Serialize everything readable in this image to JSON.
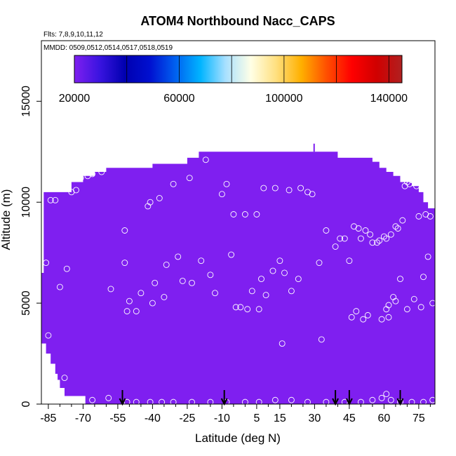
{
  "chart_data": {
    "type": "heatmap",
    "title": "ATOM4 Northbound Nacc_CAPS",
    "subtitle_flights": "Flts: 7,8,9,10,11,12",
    "subtitle_dates": "MMDD: 0509,0512,0514,0517,0518,0519",
    "xlabel": "Latitude (deg N)",
    "ylabel": "Altitude (m)",
    "xlim": [
      -88,
      82
    ],
    "ylim": [
      0,
      18000
    ],
    "x_ticks": [
      -85,
      -70,
      -55,
      -40,
      -25,
      -10,
      5,
      15,
      30,
      45,
      60,
      75
    ],
    "y_ticks": [
      0,
      5000,
      10000,
      15000
    ],
    "minor_x_ticks": [
      -80,
      -75,
      -65,
      -60,
      -50,
      -45,
      -35,
      -30,
      -20,
      -15,
      -5,
      0,
      10,
      20,
      25,
      35,
      40,
      50,
      55,
      65,
      70,
      80
    ],
    "fill_color": "#7f1ff0",
    "colorbar": {
      "min": 20000,
      "max": 145000,
      "tick_labels": [
        "20000",
        "60000",
        "100000",
        "140000"
      ],
      "tick_values": [
        20000,
        60000,
        100000,
        140000
      ],
      "grid_values": [
        20000,
        40000,
        60000,
        80000,
        100000,
        120000,
        140000
      ],
      "colors": [
        "#7f1ff0",
        "#3a14e0",
        "#0000b0",
        "#0010d0",
        "#0060f0",
        "#00b4ff",
        "#a8e0ff",
        "#ffffe6",
        "#ffe080",
        "#ffb000",
        "#ff5000",
        "#ff0000",
        "#d00000",
        "#b02020"
      ]
    },
    "curtain_profile": [
      [
        -88,
        6500
      ],
      [
        -87,
        10500
      ],
      [
        -80,
        10500
      ],
      [
        -75,
        11000
      ],
      [
        -70,
        11300
      ],
      [
        -65,
        11500
      ],
      [
        -60,
        11700
      ],
      [
        -40,
        11900
      ],
      [
        -25,
        12200
      ],
      [
        -20,
        12500
      ],
      [
        30,
        12500
      ],
      [
        40,
        12200
      ],
      [
        55,
        12000
      ],
      [
        58,
        11700
      ],
      [
        61,
        11500
      ],
      [
        64,
        11300
      ],
      [
        67,
        11000
      ],
      [
        72,
        10800
      ],
      [
        75,
        10500
      ],
      [
        77,
        10000
      ],
      [
        79,
        9700
      ],
      [
        80,
        9700
      ]
    ],
    "curtain_bottom_profile": [
      [
        -88,
        3500
      ],
      [
        -86,
        3000
      ],
      [
        -84,
        2500
      ],
      [
        -82,
        2000
      ],
      [
        -81,
        1500
      ],
      [
        -80,
        1200
      ],
      [
        -78,
        800
      ],
      [
        -72,
        400
      ],
      [
        -69,
        400
      ],
      [
        -69,
        0
      ]
    ],
    "vertical_profile_markers": [
      -53,
      -9,
      39,
      45,
      67
    ],
    "sample_points": [
      [
        -86,
        7000
      ],
      [
        -85,
        3400
      ],
      [
        -84,
        10100
      ],
      [
        -82,
        10100
      ],
      [
        -80,
        5800
      ],
      [
        -78,
        1300
      ],
      [
        -77,
        6700
      ],
      [
        -75,
        10500
      ],
      [
        -73,
        10600
      ],
      [
        -71,
        11200
      ],
      [
        -68,
        11300
      ],
      [
        -66,
        11400
      ],
      [
        -62,
        11500
      ],
      [
        -58,
        5700
      ],
      [
        -52,
        8600
      ],
      [
        -52,
        7000
      ],
      [
        -51,
        4600
      ],
      [
        -50,
        5100
      ],
      [
        -47,
        4600
      ],
      [
        -45,
        5500
      ],
      [
        -42,
        9800
      ],
      [
        -41,
        10000
      ],
      [
        -40,
        5000
      ],
      [
        -39,
        6000
      ],
      [
        -37,
        10200
      ],
      [
        -35,
        5300
      ],
      [
        -34,
        6900
      ],
      [
        -31,
        10900
      ],
      [
        -29,
        7300
      ],
      [
        -27,
        6100
      ],
      [
        -24,
        11200
      ],
      [
        -23,
        6000
      ],
      [
        -19,
        7100
      ],
      [
        -17,
        12100
      ],
      [
        -15,
        6400
      ],
      [
        -13,
        5500
      ],
      [
        -10,
        10400
      ],
      [
        -8,
        10900
      ],
      [
        -6,
        7400
      ],
      [
        -5,
        9400
      ],
      [
        -4,
        4800
      ],
      [
        -2,
        4800
      ],
      [
        0,
        9400
      ],
      [
        1,
        4700
      ],
      [
        3,
        5600
      ],
      [
        5,
        9400
      ],
      [
        6,
        4700
      ],
      [
        7,
        6200
      ],
      [
        8,
        10700
      ],
      [
        9,
        5400
      ],
      [
        12,
        6600
      ],
      [
        13,
        10700
      ],
      [
        15,
        7100
      ],
      [
        17,
        6500
      ],
      [
        19,
        10600
      ],
      [
        20,
        5600
      ],
      [
        16,
        3000
      ],
      [
        23,
        6200
      ],
      [
        24,
        10700
      ],
      [
        27,
        10500
      ],
      [
        29,
        10400
      ],
      [
        32,
        7000
      ],
      [
        33,
        3200
      ],
      [
        35,
        8600
      ],
      [
        39,
        7800
      ],
      [
        41,
        8200
      ],
      [
        43,
        8200
      ],
      [
        45,
        7100
      ],
      [
        46,
        4300
      ],
      [
        47,
        8800
      ],
      [
        48,
        4600
      ],
      [
        49,
        8700
      ],
      [
        50,
        8200
      ],
      [
        51,
        4200
      ],
      [
        52,
        8600
      ],
      [
        53,
        4400
      ],
      [
        54,
        8400
      ],
      [
        55,
        8000
      ],
      [
        57,
        8000
      ],
      [
        58,
        8100
      ],
      [
        59,
        4200
      ],
      [
        60,
        8300
      ],
      [
        61,
        8200
      ],
      [
        61,
        4700
      ],
      [
        62,
        4900
      ],
      [
        62,
        4300
      ],
      [
        63,
        8400
      ],
      [
        64,
        5300
      ],
      [
        65,
        8800
      ],
      [
        65,
        5100
      ],
      [
        66,
        8700
      ],
      [
        67,
        6200
      ],
      [
        68,
        9100
      ],
      [
        69,
        10800
      ],
      [
        70,
        11000
      ],
      [
        70,
        4700
      ],
      [
        71,
        10900
      ],
      [
        72,
        11100
      ],
      [
        73,
        5200
      ],
      [
        74,
        10800
      ],
      [
        75,
        9300
      ],
      [
        76,
        4800
      ],
      [
        77,
        6300
      ],
      [
        78,
        9400
      ],
      [
        79,
        7300
      ],
      [
        80,
        9300
      ],
      [
        81,
        5000
      ],
      [
        -66,
        200
      ],
      [
        -59,
        300
      ],
      [
        -51,
        100
      ],
      [
        -47,
        100
      ],
      [
        -41,
        100
      ],
      [
        -36,
        100
      ],
      [
        -31,
        100
      ],
      [
        -23,
        100
      ],
      [
        -15,
        100
      ],
      [
        -8,
        100
      ],
      [
        0,
        100
      ],
      [
        6,
        100
      ],
      [
        13,
        200
      ],
      [
        20,
        200
      ],
      [
        27,
        100
      ],
      [
        35,
        100
      ],
      [
        43,
        100
      ],
      [
        50,
        100
      ],
      [
        55,
        200
      ],
      [
        59,
        300
      ],
      [
        61,
        500
      ],
      [
        63,
        200
      ],
      [
        67,
        100
      ],
      [
        72,
        100
      ],
      [
        77,
        100
      ],
      [
        81,
        200
      ]
    ]
  }
}
